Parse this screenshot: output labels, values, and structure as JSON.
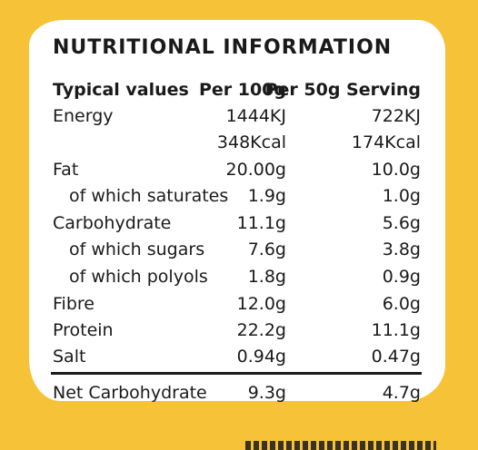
{
  "title": "NUTRITIONAL INFORMATION",
  "header": {
    "label": "Typical values",
    "per100": "Per 100g",
    "per50": "Per 50g Serving"
  },
  "rows": [
    {
      "label": "Energy",
      "per100": "1444KJ",
      "per50": "722KJ"
    },
    {
      "label": "",
      "per100": "348Kcal",
      "per50": "174Kcal"
    },
    {
      "label": "Fat",
      "per100": "20.00g",
      "per50": "10.0g"
    },
    {
      "label": "of which saturates",
      "per100": "1.9g",
      "per50": "1.0g"
    },
    {
      "label": "Carbohydrate",
      "per100": "11.1g",
      "per50": "5.6g"
    },
    {
      "label": "of which sugars",
      "per100": "7.6g",
      "per50": "3.8g"
    },
    {
      "label": "of which polyols",
      "per100": "1.8g",
      "per50": "0.9g"
    },
    {
      "label": "Fibre",
      "per100": "12.0g",
      "per50": "6.0g"
    },
    {
      "label": "Protein",
      "per100": "22.2g",
      "per50": "11.1g"
    },
    {
      "label": "Salt",
      "per100": "0.94g",
      "per50": "0.47g"
    }
  ],
  "footer": {
    "label": "Net Carbohydrate",
    "per100": "9.3g",
    "per50": "4.7g"
  }
}
